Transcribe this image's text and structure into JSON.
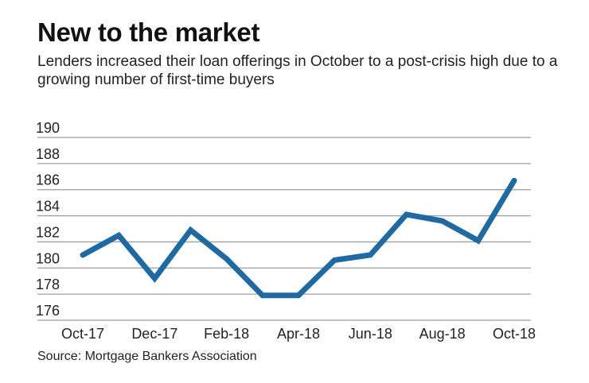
{
  "chart_data": {
    "type": "line",
    "title": "New to the market",
    "subtitle": "Lenders increased their loan offerings in October to a post-crisis high due to a growing number of first-time buyers",
    "source": "Source: Mortgage Bankers Association",
    "xlabel": "",
    "ylabel": "",
    "x": [
      "Oct-17",
      "Nov-17",
      "Dec-17",
      "Jan-18",
      "Feb-18",
      "Mar-18",
      "Apr-18",
      "May-18",
      "Jun-18",
      "Jul-18",
      "Aug-18",
      "Sep-18",
      "Oct-18"
    ],
    "x_tick_labels": [
      "Oct-17",
      "Dec-17",
      "Feb-18",
      "Apr-18",
      "Jun-18",
      "Aug-18",
      "Oct-18"
    ],
    "series": [
      {
        "name": "Loan offerings",
        "color": "#1f6aa0",
        "values": [
          181.0,
          182.5,
          179.2,
          182.9,
          180.7,
          177.9,
          177.9,
          180.6,
          181.0,
          184.1,
          183.6,
          182.1,
          186.7
        ]
      }
    ],
    "y_ticks": [
      "190",
      "188",
      "186",
      "184",
      "182",
      "180",
      "178",
      "176"
    ],
    "ylim": [
      176,
      190
    ],
    "grid": true,
    "grid_color": "#9e9e9e"
  }
}
